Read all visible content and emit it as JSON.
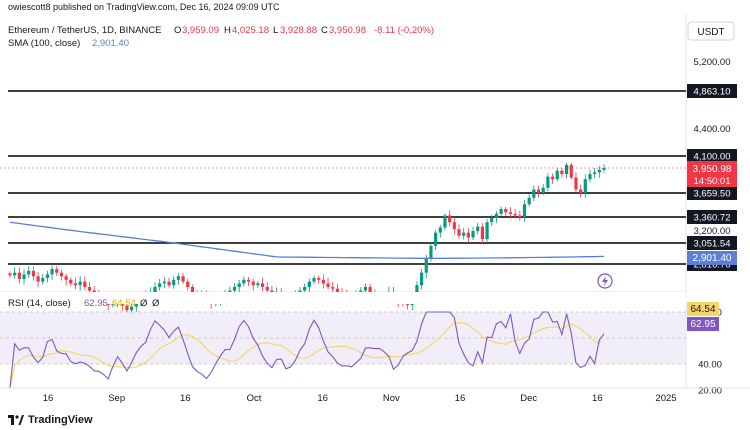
{
  "header": {
    "published_by": "owiescott8 published on TradingView.com, Dec 16, 2024 09:09 UTC",
    "currency_button": "USDT"
  },
  "legend": {
    "symbol": "Ethereum / TetherUS, 1D, BINANCE",
    "o_label": "O",
    "o_value": "3,959.09",
    "h_label": "H",
    "h_value": "4,025.18",
    "l_label": "L",
    "l_value": "3,928.88",
    "c_label": "C",
    "c_value": "3,950.98",
    "change": "-8.11 (-0.20%)",
    "sma_label": "SMA (100, close)",
    "sma_value": "2,901.40",
    "rsi_label": "RSI (14, close)",
    "rsi_value": "62.95",
    "rsi_ma_value": "64.54",
    "rsi_extra1": "Ø",
    "rsi_extra2": "Ø"
  },
  "colors": {
    "up": "#089981",
    "down": "#f23645",
    "sma": "#5b7ed6",
    "rsi": "#7e57c2",
    "rsi_ma": "#f5d769",
    "level": "#000000",
    "price_tag": "#f23645"
  },
  "price_axis": {
    "ticks": [
      {
        "label": "5,200.00",
        "value": 5200
      },
      {
        "label": "4,400.00",
        "value": 4400
      },
      {
        "label": "3,200.00",
        "value": 3200
      }
    ],
    "levels": [
      {
        "label": "4,863.10",
        "value": 4863.1
      },
      {
        "label": "4,100.00",
        "value": 4100.0
      },
      {
        "label": "3,659.50",
        "value": 3659.5
      },
      {
        "label": "3,360.72",
        "value": 3360.72
      },
      {
        "label": "3,051.54",
        "value": 3051.54
      },
      {
        "label": "2,816.76",
        "value": 2816.76
      }
    ],
    "current_price": "3,950.98",
    "countdown": "14:50:01",
    "sma_tag": "2,901.40"
  },
  "rsi_axis": {
    "ticks": [
      {
        "label": "80.00",
        "value": 80
      },
      {
        "label": "40.00",
        "value": 40
      },
      {
        "label": "20.00",
        "value": 20
      }
    ],
    "rsi_ma_tag": "64.54",
    "rsi_tag": "62.95"
  },
  "time_axis": [
    "16",
    "Sep",
    "16",
    "Oct",
    "16",
    "Nov",
    "16",
    "Dec",
    "16",
    "2025"
  ],
  "footer": {
    "brand": "TradingView"
  },
  "chart_data": {
    "type": "candlestick",
    "symbol": "Ethereum / TetherUS",
    "interval": "1D",
    "ohlc_last": {
      "open": 3959.09,
      "high": 4025.18,
      "low": 3928.88,
      "close": 3950.98
    },
    "ylim_approx": [
      2700,
      5400
    ],
    "horizontal_levels": [
      4863.1,
      4100.0,
      3659.5,
      3360.72,
      3051.54,
      2816.76
    ],
    "sma_100_last": 2901.4,
    "rsi_14_last": 62.95,
    "rsi_ma_last": 64.54,
    "rsi_ylim_approx": [
      15,
      85
    ]
  }
}
